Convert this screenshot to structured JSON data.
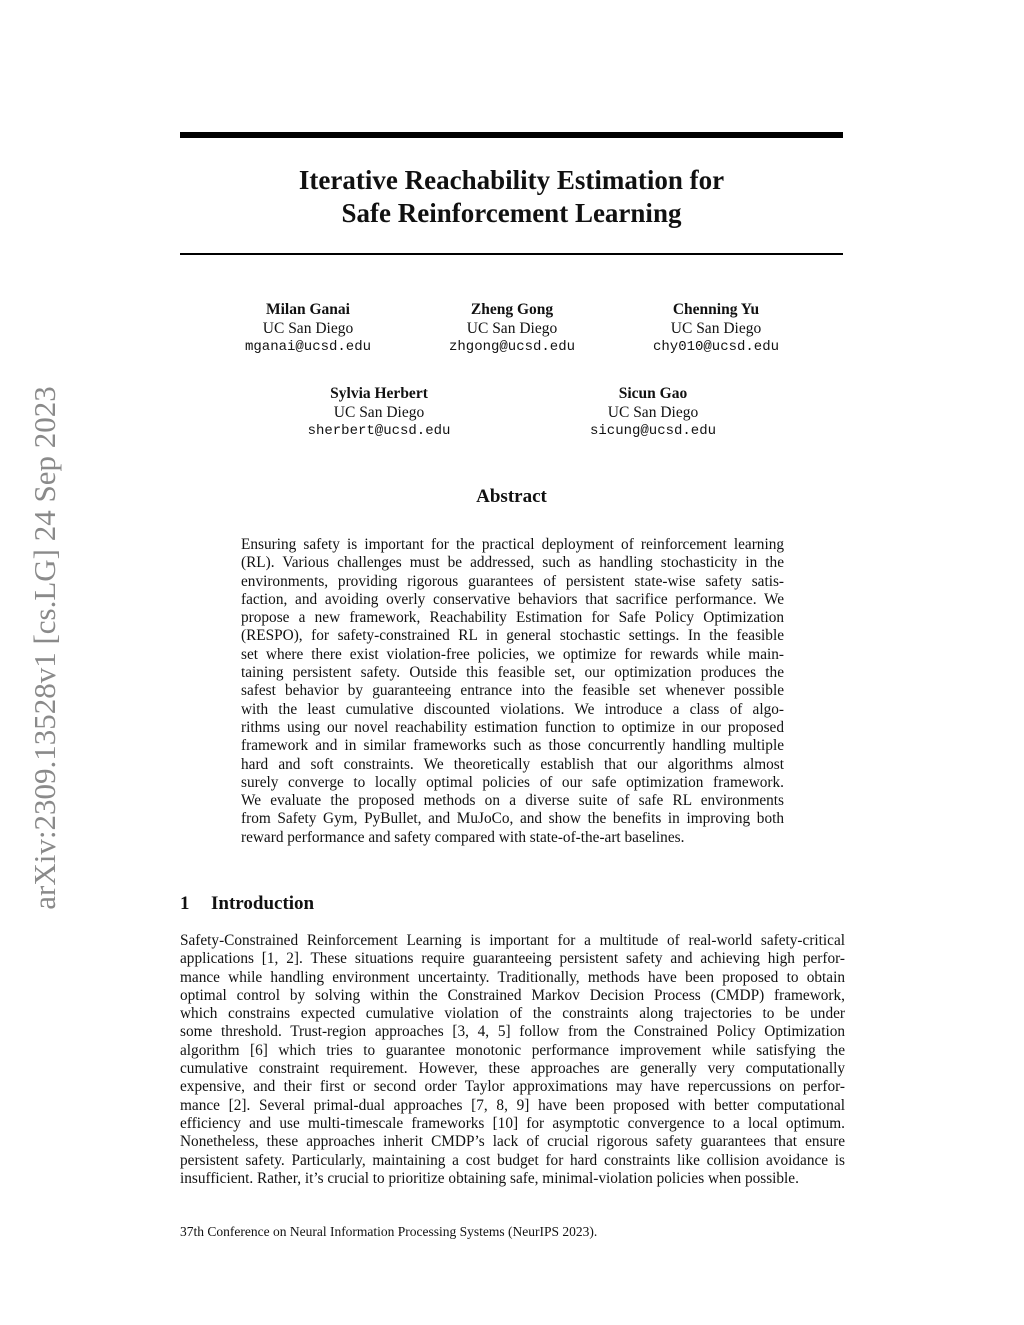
{
  "arxiv_stamp": "arXiv:2309.13528v1  [cs.LG]  24 Sep 2023",
  "title_lines": [
    "Iterative Reachability Estimation for",
    "Safe Reinforcement Learning"
  ],
  "authors": [
    {
      "name": "Milan Ganai",
      "affiliation": "UC San Diego",
      "email": "mganai@ucsd.edu"
    },
    {
      "name": "Zheng Gong",
      "affiliation": "UC San Diego",
      "email": "zhgong@ucsd.edu"
    },
    {
      "name": "Chenning Yu",
      "affiliation": "UC San Diego",
      "email": "chy010@ucsd.edu"
    },
    {
      "name": "Sylvia Herbert",
      "affiliation": "UC San Diego",
      "email": "sherbert@ucsd.edu"
    },
    {
      "name": "Sicun Gao",
      "affiliation": "UC San Diego",
      "email": "sicung@ucsd.edu"
    }
  ],
  "abstract": {
    "heading": "Abstract",
    "lines": [
      "Ensuring safety is important for the practical deployment of reinforcement learning",
      "(RL). Various challenges must be addressed, such as handling stochasticity in the",
      "environments, providing rigorous guarantees of persistent state-wise safety satis-",
      "faction, and avoiding overly conservative behaviors that sacrifice performance. We",
      "propose a new framework, Reachability Estimation for Safe Policy Optimization",
      "(RESPO), for safety-constrained RL in general stochastic settings. In the feasible",
      "set where there exist violation-free policies, we optimize for rewards while main-",
      "taining persistent safety. Outside this feasible set, our optimization produces the",
      "safest behavior by guaranteeing entrance into the feasible set whenever possible",
      "with the least cumulative discounted violations.  We introduce a class of algo-",
      "rithms using our novel reachability estimation function to optimize in our proposed",
      "framework and in similar frameworks such as those concurrently handling multiple",
      "hard and soft constraints.  We theoretically establish that our algorithms almost",
      "surely converge to locally optimal policies of our safe optimization framework.",
      "We evaluate the proposed methods on a diverse suite of safe RL environments",
      "from Safety Gym, PyBullet, and MuJoCo, and show the benefits in improving both",
      "reward performance and safety compared with state-of-the-art baselines."
    ]
  },
  "introduction": {
    "number": "1",
    "heading": "Introduction",
    "lines": [
      "Safety-Constrained Reinforcement Learning is important for a multitude of real-world safety-critical",
      "applications [1, 2]. These situations require guaranteeing persistent safety and achieving high perfor-",
      "mance while handling environment uncertainty. Traditionally, methods have been proposed to obtain",
      "optimal control by solving within the Constrained Markov Decision Process (CMDP) framework,",
      "which constrains expected cumulative violation of the constraints along trajectories to be under",
      "some threshold. Trust-region approaches [3, 4, 5] follow from the Constrained Policy Optimization",
      "algorithm [6] which tries to guarantee monotonic performance improvement while satisfying the",
      "cumulative constraint requirement. However, these approaches are generally very computationally",
      "expensive, and their first or second order Taylor approximations may have repercussions on perfor-",
      "mance [2]. Several primal-dual approaches [7, 8, 9] have been proposed with better computational",
      "efficiency and use multi-timescale frameworks [10] for asymptotic convergence to a local optimum.",
      "Nonetheless, these approaches inherit CMDP’s lack of crucial rigorous safety guarantees that ensure",
      "persistent safety. Particularly, maintaining a cost budget for hard constraints like collision avoidance is",
      "insufficient. Rather, it’s crucial to prioritize obtaining safe, minimal-violation policies when possible."
    ]
  },
  "footer": "37th Conference on Neural Information Processing Systems (NeurIPS 2023)."
}
